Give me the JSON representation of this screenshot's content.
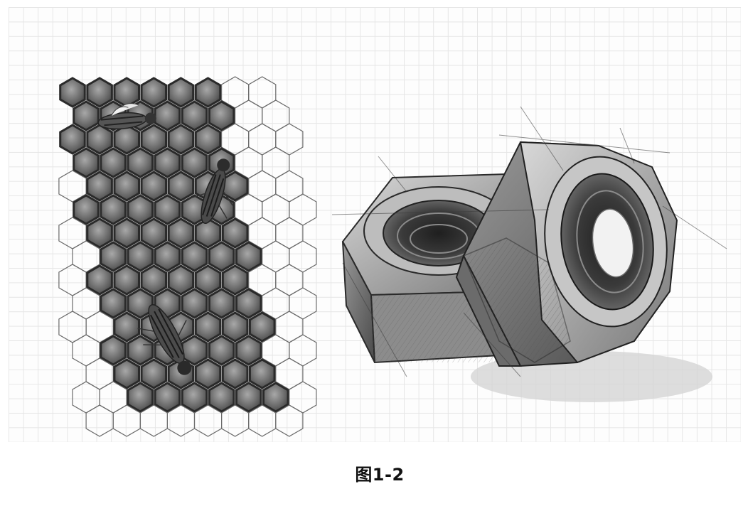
{
  "figure": {
    "caption": "图1-2",
    "left_drawing": "honeycomb-with-bees-sketch",
    "right_drawing": "two-hex-nuts-sketch",
    "colors": {
      "ink": "#2a2a2a",
      "cell_shade": "#7a7a7a",
      "grid": "#e6e6e6",
      "paper": "#fdfdfd"
    }
  }
}
